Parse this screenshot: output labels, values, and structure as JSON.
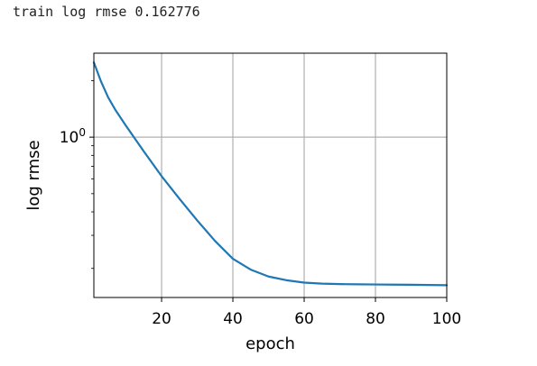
{
  "console": {
    "text": "train log rmse 0.162776"
  },
  "chart_data": {
    "type": "line",
    "title": "",
    "xlabel": "epoch",
    "ylabel": "log rmse",
    "xlim": [
      1,
      100
    ],
    "ylim": [
      0.14,
      2.8
    ],
    "yscale": "log",
    "grid": true,
    "x_ticks": [
      20,
      40,
      60,
      80,
      100
    ],
    "x_tick_labels": [
      "20",
      "40",
      "60",
      "80",
      "100"
    ],
    "y_major_ticks": [
      1
    ],
    "y_minor_ticks": [
      0.2,
      0.3,
      0.4,
      0.5,
      0.6,
      0.7,
      0.8,
      0.9,
      2
    ],
    "series": [
      {
        "color": "#1f77b4",
        "x": [
          1,
          3,
          5,
          7,
          10,
          15,
          20,
          25,
          30,
          35,
          40,
          45,
          50,
          55,
          60,
          65,
          70,
          75,
          80,
          85,
          90,
          95,
          100
        ],
        "values": [
          2.5,
          1.98,
          1.63,
          1.4,
          1.15,
          0.84,
          0.62,
          0.47,
          0.36,
          0.28,
          0.225,
          0.197,
          0.181,
          0.173,
          0.168,
          0.166,
          0.165,
          0.1645,
          0.1642,
          0.1639,
          0.1636,
          0.1632,
          0.1628
        ]
      }
    ]
  }
}
